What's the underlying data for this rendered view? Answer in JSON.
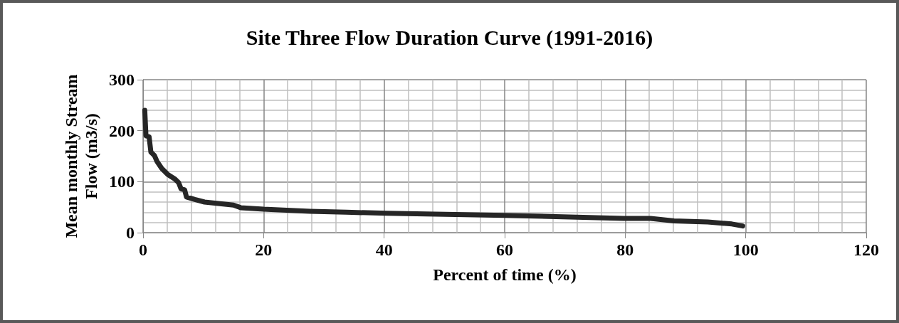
{
  "chart_data": {
    "type": "line",
    "title": "Site Three Flow Duration Curve (1991-2016)",
    "xlabel": "Percent of time (%)",
    "ylabel": "Mean monthly Stream Flow (m3/s)",
    "x": [
      0.28,
      0.48,
      1.0,
      1.3,
      1.9,
      2.3,
      3.1,
      4.1,
      5.3,
      5.9,
      6.3,
      6.9,
      7.2,
      8.6,
      10.2,
      15.0,
      16.2,
      20,
      27.7,
      33.7,
      40.5,
      59.9,
      79.8,
      84.2,
      88.1,
      93.7,
      97.7,
      99.5
    ],
    "series": [
      {
        "color": "#262626",
        "values": [
          240,
          190,
          188,
          158,
          151,
          140,
          126,
          114,
          105,
          98,
          86,
          84,
          70,
          65,
          60,
          54,
          49,
          46,
          42,
          40,
          38,
          34,
          28,
          28,
          23,
          21,
          17,
          13
        ]
      }
    ],
    "xlim": [
      0,
      120
    ],
    "xticks": [
      0,
      20,
      40,
      60,
      80,
      100,
      120
    ],
    "ylim": [
      0,
      300
    ],
    "yticks": [
      0,
      100,
      200,
      300
    ],
    "grid": true,
    "marker": "none",
    "line_style": "solid"
  }
}
